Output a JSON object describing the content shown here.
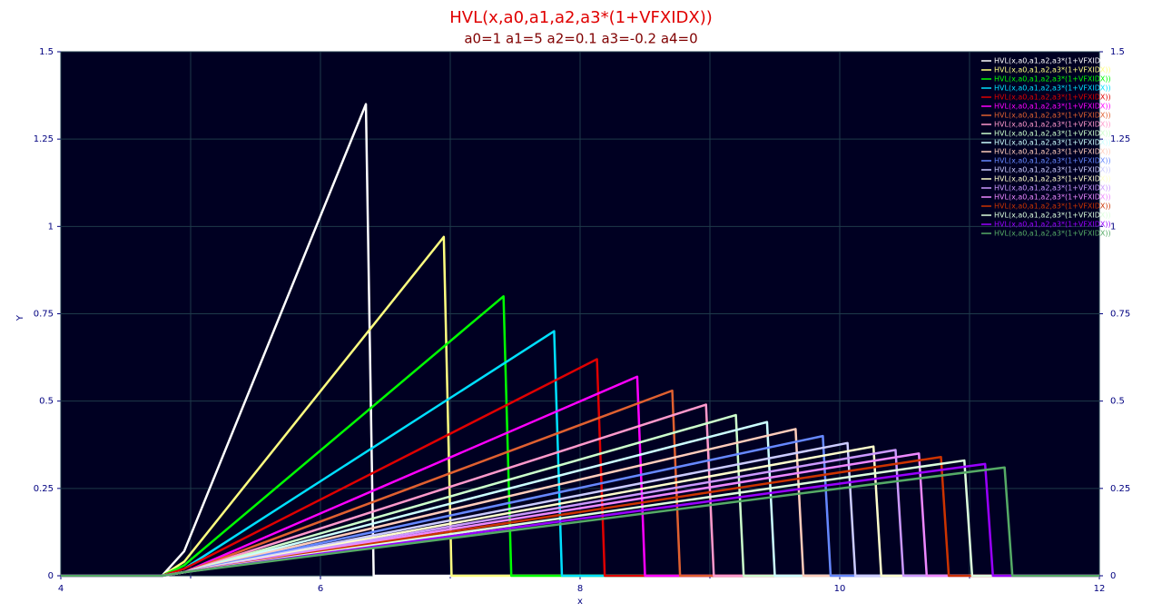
{
  "chart_data": {
    "type": "line",
    "title": "HVL(x,a0,a1,a2,a3*(1+VFXIDX))",
    "subtitle": "a0=1  a1=5  a2=0.1  a3=-0.2  a4=0",
    "x_label": "x",
    "y_label": "Y",
    "xlim": [
      4,
      12
    ],
    "xticks": [
      4,
      6,
      8,
      10,
      12
    ],
    "xminorticks": [
      5,
      7,
      9,
      11
    ],
    "ylim": [
      0,
      1.5
    ],
    "yticks": [
      0,
      0.25,
      0.5,
      0.75,
      1,
      1.25,
      1.5
    ],
    "grid": true,
    "legend": "top-right",
    "background": "#000022",
    "series": [
      {
        "name": "HVL(x,a0,a1,a2,a3*(1+VFXIDX))",
        "color": "#ffffff",
        "x": [
          4,
          4.78,
          4.95,
          6.35,
          6.41,
          12
        ],
        "values": [
          0,
          0,
          0.07,
          1.35,
          0,
          0
        ]
      },
      {
        "name": "HVL(x,a0,a1,a2,a3*(1+VFXIDX))",
        "color": "#ffff80",
        "x": [
          4,
          4.78,
          4.95,
          6.95,
          7.01,
          12
        ],
        "values": [
          0,
          0,
          0.04,
          0.97,
          0,
          0
        ]
      },
      {
        "name": "HVL(x,a0,a1,a2,a3*(1+VFXIDX))",
        "color": "#00ff00",
        "x": [
          4,
          4.78,
          4.95,
          7.41,
          7.47,
          12
        ],
        "values": [
          0,
          0,
          0.03,
          0.8,
          0,
          0
        ]
      },
      {
        "name": "HVL(x,a0,a1,a2,a3*(1+VFXIDX))",
        "color": "#00e0ff",
        "x": [
          4,
          4.78,
          4.95,
          7.8,
          7.86,
          12
        ],
        "values": [
          0,
          0,
          0.02,
          0.7,
          0,
          0
        ]
      },
      {
        "name": "HVL(x,a0,a1,a2,a3*(1+VFXIDX))",
        "color": "#e00000",
        "x": [
          4,
          4.78,
          4.95,
          8.13,
          8.19,
          12
        ],
        "values": [
          0,
          0,
          0.02,
          0.62,
          0,
          0
        ]
      },
      {
        "name": "HVL(x,a0,a1,a2,a3*(1+VFXIDX))",
        "color": "#ff00ff",
        "x": [
          4,
          4.78,
          4.95,
          8.44,
          8.5,
          12
        ],
        "values": [
          0,
          0,
          0.01,
          0.57,
          0,
          0
        ]
      },
      {
        "name": "HVL(x,a0,a1,a2,a3*(1+VFXIDX))",
        "color": "#e06030",
        "x": [
          4,
          4.78,
          4.95,
          8.71,
          8.77,
          12
        ],
        "values": [
          0,
          0,
          0.01,
          0.53,
          0,
          0
        ]
      },
      {
        "name": "HVL(x,a0,a1,a2,a3*(1+VFXIDX))",
        "color": "#ff99cc",
        "x": [
          4,
          4.78,
          4.95,
          8.97,
          9.03,
          12
        ],
        "values": [
          0,
          0,
          0.01,
          0.49,
          0,
          0
        ]
      },
      {
        "name": "HVL(x,a0,a1,a2,a3*(1+VFXIDX))",
        "color": "#ccffcc",
        "x": [
          4,
          4.78,
          4.95,
          9.2,
          9.26,
          12
        ],
        "values": [
          0,
          0,
          0.01,
          0.46,
          0,
          0
        ]
      },
      {
        "name": "HVL(x,a0,a1,a2,a3*(1+VFXIDX))",
        "color": "#ccffff",
        "x": [
          4,
          4.78,
          4.95,
          9.44,
          9.5,
          12
        ],
        "values": [
          0,
          0,
          0.01,
          0.44,
          0,
          0
        ]
      },
      {
        "name": "HVL(x,a0,a1,a2,a3*(1+VFXIDX))",
        "color": "#ffccbb",
        "x": [
          4,
          4.78,
          4.95,
          9.66,
          9.72,
          12
        ],
        "values": [
          0,
          0,
          0.01,
          0.42,
          0,
          0
        ]
      },
      {
        "name": "HVL(x,a0,a1,a2,a3*(1+VFXIDX))",
        "color": "#6688ff",
        "x": [
          4,
          4.78,
          4.95,
          9.87,
          9.93,
          12
        ],
        "values": [
          0,
          0,
          0.01,
          0.4,
          0,
          0
        ]
      },
      {
        "name": "HVL(x,a0,a1,a2,a3*(1+VFXIDX))",
        "color": "#ccccff",
        "x": [
          4,
          4.78,
          4.95,
          10.06,
          10.12,
          12
        ],
        "values": [
          0,
          0,
          0.01,
          0.38,
          0,
          0
        ]
      },
      {
        "name": "HVL(x,a0,a1,a2,a3*(1+VFXIDX))",
        "color": "#ffffcc",
        "x": [
          4,
          4.78,
          4.95,
          10.26,
          10.32,
          12
        ],
        "values": [
          0,
          0,
          0.01,
          0.37,
          0,
          0
        ]
      },
      {
        "name": "HVL(x,a0,a1,a2,a3*(1+VFXIDX))",
        "color": "#cc99ff",
        "x": [
          4,
          4.78,
          4.95,
          10.43,
          10.49,
          12
        ],
        "values": [
          0,
          0,
          0.01,
          0.36,
          0,
          0
        ]
      },
      {
        "name": "HVL(x,a0,a1,a2,a3*(1+VFXIDX))",
        "color": "#ee88ff",
        "x": [
          4,
          4.78,
          4.95,
          10.61,
          10.67,
          12
        ],
        "values": [
          0,
          0,
          0.01,
          0.35,
          0,
          0
        ]
      },
      {
        "name": "HVL(x,a0,a1,a2,a3*(1+VFXIDX))",
        "color": "#cc3300",
        "x": [
          4,
          4.78,
          4.95,
          10.78,
          10.84,
          12
        ],
        "values": [
          0,
          0,
          0.01,
          0.34,
          0,
          0
        ]
      },
      {
        "name": "HVL(x,a0,a1,a2,a3*(1+VFXIDX))",
        "color": "#ddffdd",
        "x": [
          4,
          4.78,
          4.95,
          10.96,
          11.02,
          12
        ],
        "values": [
          0,
          0,
          0.01,
          0.33,
          0,
          0
        ]
      },
      {
        "name": "HVL(x,a0,a1,a2,a3*(1+VFXIDX))",
        "color": "#9900ff",
        "x": [
          4,
          4.78,
          4.95,
          11.12,
          11.18,
          12
        ],
        "values": [
          0,
          0,
          0.01,
          0.32,
          0,
          0
        ]
      },
      {
        "name": "HVL(x,a0,a1,a2,a3*(1+VFXIDX))",
        "color": "#55aa66",
        "x": [
          4,
          4.78,
          4.95,
          11.27,
          11.33,
          12
        ],
        "values": [
          0,
          0,
          0.01,
          0.31,
          0,
          0
        ]
      }
    ]
  }
}
